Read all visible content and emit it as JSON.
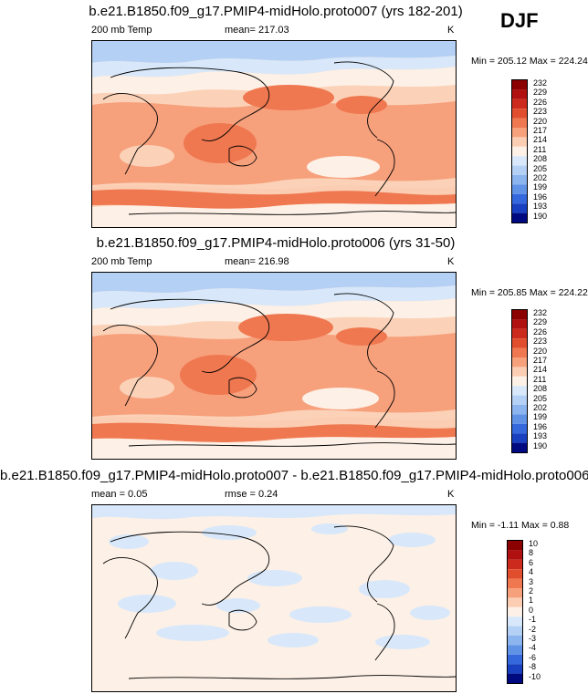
{
  "season": "DJF",
  "panels": [
    {
      "title": "b.e21.B1850.f09_g17.PMIP4-midHolo.proto007 (yrs 182-201)",
      "left_label": "200 mb Temp",
      "center_label": "mean= 217.03",
      "right_label": "K",
      "minmax": "Min = 205.12 Max = 224.24",
      "colorbar_ticks": [
        "232",
        "229",
        "226",
        "223",
        "220",
        "217",
        "214",
        "211",
        "208",
        "205",
        "202",
        "199",
        "196",
        "193",
        "190"
      ]
    },
    {
      "title": "b.e21.B1850.f09_g17.PMIP4-midHolo.proto006 (yrs 31-50)",
      "left_label": "200 mb Temp",
      "center_label": "mean= 216.98",
      "right_label": "K",
      "minmax": "Min = 205.85 Max = 224.22",
      "colorbar_ticks": [
        "232",
        "229",
        "226",
        "223",
        "220",
        "217",
        "214",
        "211",
        "208",
        "205",
        "202",
        "199",
        "196",
        "193",
        "190"
      ]
    },
    {
      "title": "b.e21.B1850.f09_g17.PMIP4-midHolo.proto007 - b.e21.B1850.f09_g17.PMIP4-midHolo.proto006",
      "left_label": "mean =   0.05",
      "center_label": "rmse =   0.24",
      "right_label": "K",
      "minmax": "Min =  -1.11 Max =   0.88",
      "colorbar_ticks": [
        "10",
        "8",
        "6",
        "4",
        "3",
        "2",
        "1",
        "0",
        "-1",
        "-2",
        "-3",
        "-4",
        "-6",
        "-8",
        "-10"
      ]
    }
  ],
  "chart_data": [
    {
      "type": "heatmap",
      "title": "b.e21.B1850.f09_g17.PMIP4-midHolo.proto007 (yrs 182-201)",
      "variable": "200 mb Temp",
      "units": "K",
      "mean": 217.03,
      "min": 205.12,
      "max": 224.24,
      "levels": [
        190,
        193,
        196,
        199,
        202,
        205,
        208,
        211,
        214,
        217,
        220,
        223,
        226,
        229,
        232
      ]
    },
    {
      "type": "heatmap",
      "title": "b.e21.B1850.f09_g17.PMIP4-midHolo.proto006 (yrs 31-50)",
      "variable": "200 mb Temp",
      "units": "K",
      "mean": 216.98,
      "min": 205.85,
      "max": 224.22,
      "levels": [
        190,
        193,
        196,
        199,
        202,
        205,
        208,
        211,
        214,
        217,
        220,
        223,
        226,
        229,
        232
      ]
    },
    {
      "type": "heatmap",
      "title": "b.e21.B1850.f09_g17.PMIP4-midHolo.proto007 - b.e21.B1850.f09_g17.PMIP4-midHolo.proto006",
      "units": "K",
      "mean": 0.05,
      "rmse": 0.24,
      "min": -1.11,
      "max": 0.88,
      "levels": [
        -10,
        -8,
        -6,
        -4,
        -3,
        -2,
        -1,
        0,
        1,
        2,
        3,
        4,
        6,
        8,
        10
      ]
    }
  ],
  "colorbar_colors": [
    "#8b0000",
    "#b01010",
    "#cc2a1c",
    "#e04e2e",
    "#ef7850",
    "#f7a07c",
    "#fbcdb2",
    "#fdf0e6",
    "#d8e8fa",
    "#b4d0f4",
    "#8cb4ee",
    "#6092e6",
    "#3468dc",
    "#1840c0",
    "#000a80"
  ]
}
